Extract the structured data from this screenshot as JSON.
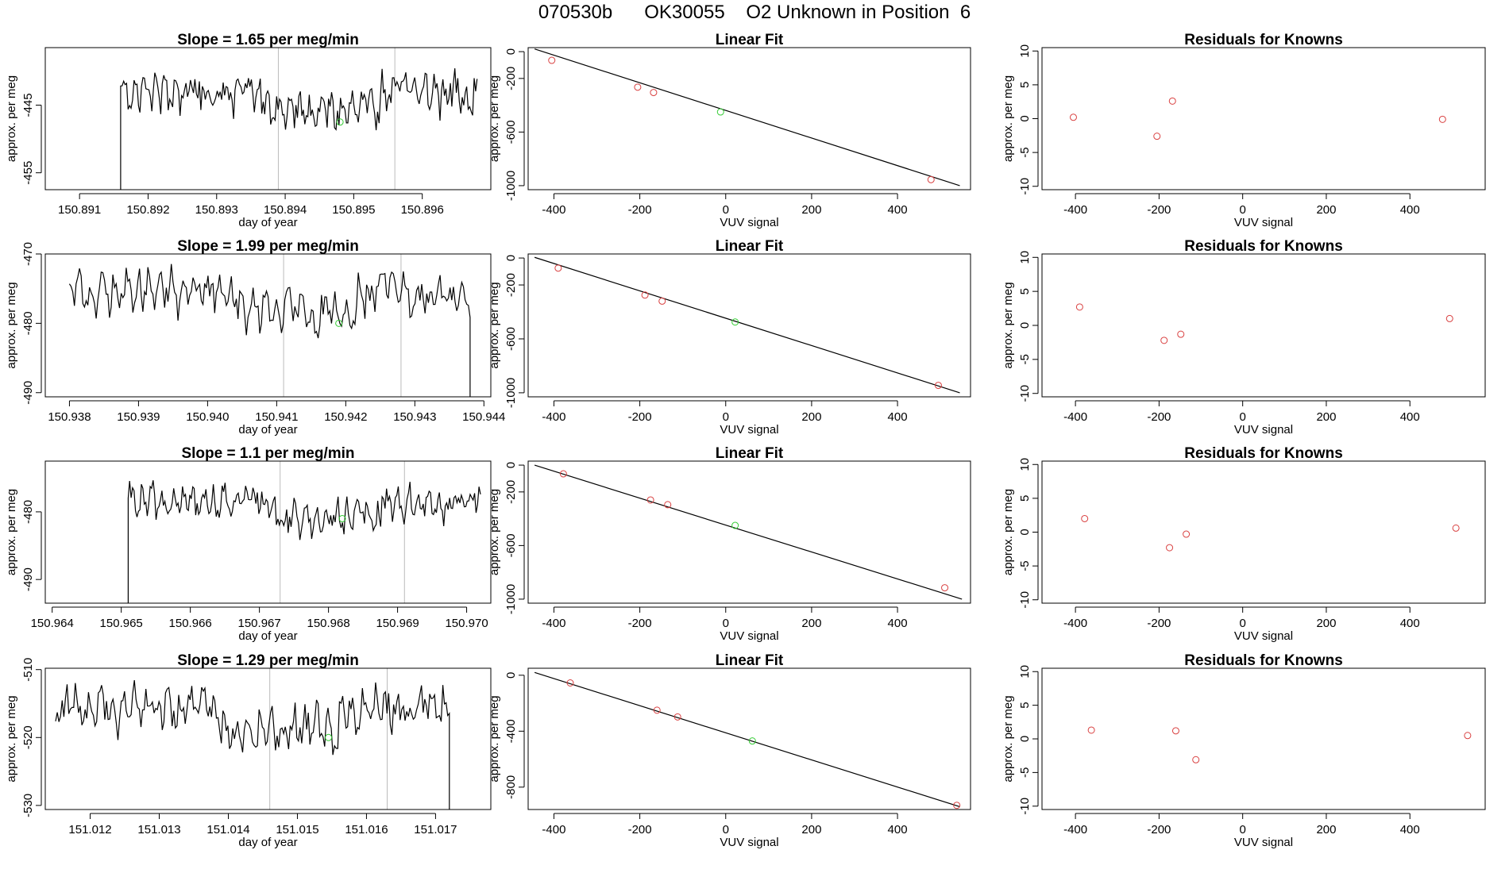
{
  "figure": {
    "title": "070530b      OK30055    O2 Unknown in Position  6"
  },
  "colors": {
    "line": "#000000",
    "known_point": "#d94040",
    "unknown_point": "#33cc33",
    "vline": "#bbbbbb"
  },
  "chart_data": [
    {
      "type": "line",
      "title": "Slope =  1.65  per meg/min",
      "xlabel": "day of year",
      "ylabel": "approx. per meg",
      "xlim": [
        150.8905,
        150.897
      ],
      "ylim": [
        -457.5,
        -436.5
      ],
      "xticks": [
        150.891,
        150.892,
        150.893,
        150.894,
        150.895,
        150.896
      ],
      "xtick_labels": [
        "150.891",
        "150.892",
        "150.893",
        "150.894",
        "150.895",
        "150.896"
      ],
      "yticks": [
        -445,
        -455
      ],
      "ytick_labels": [
        "-445",
        "-455"
      ],
      "vlines": [
        150.8939,
        150.8956
      ],
      "series_start": 150.8916,
      "series_end": 150.8968,
      "series_baseline": -443.5,
      "series_amp": 4.5,
      "drop_start_to": -470,
      "drop_end_to": null,
      "unknown_point": {
        "x": 150.8948,
        "y": -447.5
      }
    },
    {
      "type": "scatter",
      "title": "Linear Fit",
      "xlabel": "VUV signal",
      "ylabel": "approx. per meg",
      "xlim": [
        -460,
        570
      ],
      "ylim": [
        -1030,
        30
      ],
      "xticks": [
        -400,
        -200,
        0,
        200,
        400
      ],
      "xtick_labels": [
        "-400",
        "-200",
        "0",
        "200",
        "400"
      ],
      "yticks": [
        0,
        -200,
        -600,
        -1000
      ],
      "ytick_labels": [
        "0",
        "-200",
        "-600",
        "-1000"
      ],
      "fit_line": {
        "x1": -445,
        "y1": 20,
        "x2": 545,
        "y2": -1000
      },
      "knowns": [
        {
          "x": -405,
          "y": -65
        },
        {
          "x": -205,
          "y": -265
        },
        {
          "x": -168,
          "y": -305
        },
        {
          "x": 478,
          "y": -955
        }
      ],
      "unknown": {
        "x": -12,
        "y": -450
      }
    },
    {
      "type": "scatter",
      "title": "Residuals for Knowns",
      "xlabel": "VUV signal",
      "ylabel": "approx. per meg",
      "xlim": [
        -480,
        580
      ],
      "ylim": [
        -10.5,
        10.5
      ],
      "xticks": [
        -400,
        -200,
        0,
        200,
        400
      ],
      "xtick_labels": [
        "-400",
        "-200",
        "0",
        "200",
        "400"
      ],
      "yticks": [
        10,
        5,
        0,
        -5,
        -10
      ],
      "ytick_labels": [
        "10",
        "5",
        "0",
        "-5",
        "-10"
      ],
      "points": [
        {
          "x": -405,
          "y": 0.2
        },
        {
          "x": -205,
          "y": -2.6
        },
        {
          "x": -168,
          "y": 2.6
        },
        {
          "x": 478,
          "y": -0.1
        }
      ]
    },
    {
      "type": "line",
      "title": "Slope =  1.99  per meg/min",
      "xlabel": "day of year",
      "ylabel": "approx. per meg",
      "xlim": [
        150.93765,
        150.9441
      ],
      "ylim": [
        -490.6,
        -470.0
      ],
      "xticks": [
        150.938,
        150.939,
        150.94,
        150.941,
        150.942,
        150.943,
        150.944
      ],
      "xtick_labels": [
        "150.938",
        "150.939",
        "150.940",
        "150.941",
        "150.942",
        "150.943",
        "150.944"
      ],
      "yticks": [
        -470,
        -480,
        -490
      ],
      "ytick_labels": [
        "-470",
        "-480",
        "-490"
      ],
      "vlines": [
        150.9411,
        150.9428
      ],
      "series_start": 150.938,
      "series_end": 150.9438,
      "series_baseline": -476.0,
      "series_amp": 4.5,
      "drop_start_to": null,
      "drop_end_to": -500,
      "unknown_point": {
        "x": 150.9419,
        "y": -480.0
      }
    },
    {
      "type": "scatter",
      "title": "Linear Fit",
      "xlabel": "VUV signal",
      "ylabel": "approx. per meg",
      "xlim": [
        -460,
        570
      ],
      "ylim": [
        -1030,
        30
      ],
      "xticks": [
        -400,
        -200,
        0,
        200,
        400
      ],
      "xtick_labels": [
        "-400",
        "-200",
        "0",
        "200",
        "400"
      ],
      "yticks": [
        0,
        -200,
        -600,
        -1000
      ],
      "ytick_labels": [
        "0",
        "-200",
        "-600",
        "-1000"
      ],
      "fit_line": {
        "x1": -445,
        "y1": 5,
        "x2": 545,
        "y2": -1000
      },
      "knowns": [
        {
          "x": -390,
          "y": -75
        },
        {
          "x": -188,
          "y": -275
        },
        {
          "x": -148,
          "y": -320
        },
        {
          "x": 495,
          "y": -945
        }
      ],
      "unknown": {
        "x": 22,
        "y": -475
      }
    },
    {
      "type": "scatter",
      "title": "Residuals for Knowns",
      "xlabel": "VUV signal",
      "ylabel": "approx. per meg",
      "xlim": [
        -480,
        580
      ],
      "ylim": [
        -10.5,
        10.5
      ],
      "xticks": [
        -400,
        -200,
        0,
        200,
        400
      ],
      "xtick_labels": [
        "-400",
        "-200",
        "0",
        "200",
        "400"
      ],
      "yticks": [
        10,
        5,
        0,
        -5,
        -10
      ],
      "ytick_labels": [
        "10",
        "5",
        "0",
        "-5",
        "-10"
      ],
      "points": [
        {
          "x": -390,
          "y": 2.7
        },
        {
          "x": -188,
          "y": -2.2
        },
        {
          "x": -148,
          "y": -1.3
        },
        {
          "x": 495,
          "y": 1.0
        }
      ]
    },
    {
      "type": "line",
      "title": "Slope =  1.1  per meg/min",
      "xlabel": "day of year",
      "ylabel": "approx. per meg",
      "xlim": [
        150.9639,
        150.97035
      ],
      "ylim": [
        -493.5,
        -472.5
      ],
      "xticks": [
        150.964,
        150.965,
        150.966,
        150.967,
        150.968,
        150.969,
        150.97
      ],
      "xtick_labels": [
        "150.964",
        "150.965",
        "150.966",
        "150.967",
        "150.968",
        "150.969",
        "150.970"
      ],
      "yticks": [
        -480,
        -490
      ],
      "ytick_labels": [
        "-480",
        "-490"
      ],
      "vlines": [
        150.9673,
        150.9691
      ],
      "series_start": 150.9651,
      "series_end": 150.9702,
      "series_baseline": -479.0,
      "series_amp": 3.5,
      "drop_start_to": -500,
      "drop_end_to": null,
      "unknown_point": {
        "x": 150.9682,
        "y": -481.0
      }
    },
    {
      "type": "scatter",
      "title": "Linear Fit",
      "xlabel": "VUV signal",
      "ylabel": "approx. per meg",
      "xlim": [
        -460,
        570
      ],
      "ylim": [
        -1030,
        30
      ],
      "xticks": [
        -400,
        -200,
        0,
        200,
        400
      ],
      "xtick_labels": [
        "-400",
        "-200",
        "0",
        "200",
        "400"
      ],
      "yticks": [
        0,
        -200,
        -600,
        -1000
      ],
      "ytick_labels": [
        "0",
        "-200",
        "-600",
        "-1000"
      ],
      "fit_line": {
        "x1": -445,
        "y1": 0,
        "x2": 550,
        "y2": -1000
      },
      "knowns": [
        {
          "x": -378,
          "y": -65
        },
        {
          "x": -175,
          "y": -260
        },
        {
          "x": -135,
          "y": -295
        },
        {
          "x": 510,
          "y": -915
        }
      ],
      "unknown": {
        "x": 22,
        "y": -450
      }
    },
    {
      "type": "scatter",
      "title": "Residuals for Knowns",
      "xlabel": "VUV signal",
      "ylabel": "approx. per meg",
      "xlim": [
        -480,
        580
      ],
      "ylim": [
        -10.5,
        10.5
      ],
      "xticks": [
        -400,
        -200,
        0,
        200,
        400
      ],
      "xtick_labels": [
        "-400",
        "-200",
        "0",
        "200",
        "400"
      ],
      "yticks": [
        10,
        5,
        0,
        -5,
        -10
      ],
      "ytick_labels": [
        "10",
        "5",
        "0",
        "-5",
        "-10"
      ],
      "points": [
        {
          "x": -378,
          "y": 2.0
        },
        {
          "x": -175,
          "y": -2.3
        },
        {
          "x": -135,
          "y": -0.3
        },
        {
          "x": 510,
          "y": 0.6
        }
      ]
    },
    {
      "type": "line",
      "title": "Slope =  1.29  per meg/min",
      "xlabel": "day of year",
      "ylabel": "approx. per meg",
      "xlim": [
        151.01135,
        151.0178
      ],
      "ylim": [
        -530.6,
        -509.8
      ],
      "xticks": [
        151.012,
        151.013,
        151.014,
        151.015,
        151.016,
        151.017
      ],
      "xtick_labels": [
        "151.012",
        "151.013",
        "151.014",
        "151.015",
        "151.016",
        "151.017"
      ],
      "yticks": [
        -510,
        -520,
        -530
      ],
      "ytick_labels": [
        "-510",
        "-520",
        "-530"
      ],
      "vlines": [
        151.0146,
        151.0163
      ],
      "series_start": 151.0115,
      "series_end": 151.0172,
      "series_baseline": -516.0,
      "series_amp": 4.5,
      "drop_start_to": null,
      "drop_end_to": -540,
      "unknown_point": {
        "x": 151.01545,
        "y": -520.0
      }
    },
    {
      "type": "scatter",
      "title": "Linear Fit",
      "xlabel": "VUV signal",
      "ylabel": "approx. per meg",
      "xlim": [
        -460,
        570
      ],
      "ylim": [
        -960,
        50
      ],
      "xticks": [
        -400,
        -200,
        0,
        200,
        400
      ],
      "xtick_labels": [
        "-400",
        "-200",
        "0",
        "200",
        "400"
      ],
      "yticks": [
        0,
        -400,
        -800
      ],
      "ytick_labels": [
        "0",
        "-400",
        "-800"
      ],
      "fit_line": {
        "x1": -445,
        "y1": 20,
        "x2": 545,
        "y2": -940
      },
      "knowns": [
        {
          "x": -362,
          "y": -55
        },
        {
          "x": -160,
          "y": -250
        },
        {
          "x": -112,
          "y": -298
        },
        {
          "x": 538,
          "y": -930
        }
      ],
      "unknown": {
        "x": 62,
        "y": -470
      }
    },
    {
      "type": "scatter",
      "title": "Residuals for Knowns",
      "xlabel": "VUV signal",
      "ylabel": "approx. per meg",
      "xlim": [
        -480,
        580
      ],
      "ylim": [
        -10.5,
        10.5
      ],
      "xticks": [
        -400,
        -200,
        0,
        200,
        400
      ],
      "xtick_labels": [
        "-400",
        "-200",
        "0",
        "200",
        "400"
      ],
      "yticks": [
        10,
        5,
        0,
        -5,
        -10
      ],
      "ytick_labels": [
        "10",
        "5",
        "0",
        "-5",
        "-10"
      ],
      "points": [
        {
          "x": -362,
          "y": 1.3
        },
        {
          "x": -160,
          "y": 1.2
        },
        {
          "x": -112,
          "y": -3.1
        },
        {
          "x": 538,
          "y": 0.5
        }
      ]
    }
  ]
}
